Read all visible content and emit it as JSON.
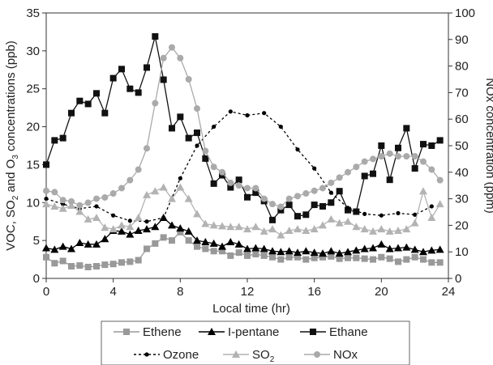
{
  "chart_data": {
    "type": "line",
    "xlabel": "Local time (hr)",
    "ylabel_left": "VOC, SO2 and O3 concentrations (ppb)",
    "ylabel_left_parts": {
      "a": "VOC, SO",
      "sub1": "2",
      "b": " and O",
      "sub2": "3",
      "c": " concentrations (ppb)"
    },
    "ylabel_right": "NOx concentration (ppm)",
    "xlim": [
      0,
      24
    ],
    "ylim_left": [
      0,
      35
    ],
    "ylim_right": [
      0,
      100
    ],
    "x_ticks": [
      "0",
      "4",
      "8",
      "12",
      "16",
      "20",
      "24"
    ],
    "y_ticks_left": [
      "0",
      "5",
      "10",
      "15",
      "20",
      "25",
      "30",
      "35"
    ],
    "y_ticks_right": [
      "0",
      "10",
      "20",
      "30",
      "40",
      "50",
      "60",
      "70",
      "80",
      "90",
      "100"
    ],
    "grid": false,
    "legend_position": "bottom",
    "series": [
      {
        "name": "Ethene",
        "axis": "left",
        "color": "#999999",
        "marker": "square",
        "line": "solid",
        "x": [
          0,
          0.5,
          1,
          1.5,
          2,
          2.5,
          3,
          3.5,
          4,
          4.5,
          5,
          5.5,
          6,
          6.5,
          7,
          7.5,
          8,
          8.5,
          9,
          9.5,
          10,
          10.5,
          11,
          11.5,
          12,
          12.5,
          13,
          13.5,
          14,
          14.5,
          15,
          15.5,
          16,
          16.5,
          17,
          17.5,
          18,
          18.5,
          19,
          19.5,
          20,
          20.5,
          21,
          21.5,
          22,
          22.5,
          23,
          23.5
        ],
        "y": [
          2.8,
          2.0,
          2.3,
          1.6,
          1.7,
          1.5,
          1.6,
          1.8,
          1.9,
          2.1,
          2.2,
          2.4,
          3.9,
          4.6,
          5.4,
          5.0,
          6.1,
          5.0,
          4.2,
          3.9,
          3.6,
          3.6,
          3.0,
          3.4,
          3.0,
          3.2,
          3.0,
          2.8,
          2.5,
          2.8,
          2.8,
          2.5,
          2.7,
          2.8,
          2.9,
          2.6,
          2.7,
          2.7,
          2.6,
          2.5,
          2.8,
          2.6,
          2.2,
          2.5,
          2.8,
          2.5,
          2.1,
          2.1
        ]
      },
      {
        "name": "I-pentane",
        "axis": "left",
        "color": "#000000",
        "marker": "triangle",
        "line": "solid",
        "x": [
          0,
          0.5,
          1,
          1.5,
          2,
          2.5,
          3,
          3.5,
          4,
          4.5,
          5,
          5.5,
          6,
          6.5,
          7,
          7.5,
          8,
          8.5,
          9,
          9.5,
          10,
          10.5,
          11,
          11.5,
          12,
          12.5,
          13,
          13.5,
          14,
          14.5,
          15,
          15.5,
          16,
          16.5,
          17,
          17.5,
          18,
          18.5,
          19,
          19.5,
          20,
          20.5,
          21,
          21.5,
          22,
          22.5,
          23,
          23.5
        ],
        "y": [
          4.0,
          3.8,
          4.2,
          3.9,
          4.7,
          4.5,
          4.5,
          5.2,
          6.3,
          6.2,
          5.8,
          6.3,
          6.5,
          6.8,
          8.0,
          7.0,
          6.6,
          6.2,
          5.0,
          4.8,
          4.6,
          4.2,
          4.8,
          4.5,
          3.9,
          4.0,
          3.9,
          3.6,
          3.5,
          3.6,
          3.4,
          3.6,
          3.4,
          3.3,
          3.6,
          3.3,
          3.5,
          3.7,
          3.9,
          4.0,
          4.5,
          3.9,
          4.0,
          4.1,
          3.8,
          3.5,
          3.7,
          3.8
        ]
      },
      {
        "name": "Ethane",
        "axis": "left",
        "color": "#111111",
        "marker": "square",
        "line": "solid",
        "x": [
          0,
          0.5,
          1,
          1.5,
          2,
          2.5,
          3,
          3.5,
          4,
          4.5,
          5,
          5.5,
          6,
          6.5,
          7,
          7.5,
          8,
          8.5,
          9,
          9.5,
          10,
          10.5,
          11,
          11.5,
          12,
          12.5,
          13,
          13.5,
          14,
          14.5,
          15,
          15.5,
          16,
          16.5,
          17,
          17.5,
          18,
          18.5,
          19,
          19.5,
          20,
          20.5,
          21,
          21.5,
          22,
          22.5,
          23,
          23.5
        ],
        "y": [
          15.0,
          18.2,
          18.5,
          21.8,
          23.4,
          23.0,
          24.4,
          21.8,
          26.4,
          27.6,
          25.0,
          24.5,
          27.8,
          31.9,
          26.2,
          19.8,
          21.3,
          18.5,
          19.2,
          15.8,
          12.5,
          13.6,
          12.0,
          13.0,
          10.7,
          11.3,
          10.2,
          7.7,
          9.0,
          9.7,
          8.2,
          8.4,
          9.7,
          9.5,
          10.0,
          11.5,
          9.0,
          8.8,
          13.5,
          13.8,
          17.5,
          13.0,
          17.2,
          19.8,
          14.5,
          17.7,
          17.5,
          18.2
        ]
      },
      {
        "name": "Ozone",
        "axis": "left",
        "color": "#000000",
        "marker": "circle-small",
        "line": "dashed",
        "x": [
          0,
          1,
          2,
          3,
          4,
          5,
          6,
          7,
          8,
          9,
          10,
          11,
          12,
          13,
          14,
          15,
          16,
          17,
          18,
          19,
          20,
          21,
          22,
          23
        ],
        "y": [
          10.5,
          9.8,
          9.2,
          9.5,
          8.3,
          7.6,
          7.5,
          8.0,
          13.2,
          17.5,
          20.0,
          22.0,
          21.5,
          21.8,
          20.0,
          17.0,
          14.5,
          11.3,
          9.3,
          8.5,
          8.3,
          8.6,
          8.4,
          9.5
        ]
      },
      {
        "name": "SO2",
        "label_base": "SO",
        "label_sub": "2",
        "axis": "left",
        "color": "#b3b3b3",
        "marker": "triangle",
        "line": "solid",
        "x": [
          0,
          0.5,
          1,
          1.5,
          2,
          2.5,
          3,
          3.5,
          4,
          4.5,
          5,
          5.5,
          6,
          6.5,
          7,
          7.5,
          8,
          8.5,
          9,
          9.5,
          10,
          10.5,
          11,
          11.5,
          12,
          12.5,
          13,
          13.5,
          14,
          14.5,
          15,
          15.5,
          16,
          16.5,
          17,
          17.5,
          18,
          18.5,
          19,
          19.5,
          20,
          20.5,
          21,
          21.5,
          22,
          22.5,
          23,
          23.5
        ],
        "y": [
          9.8,
          9.5,
          9.2,
          9.6,
          8.8,
          7.8,
          8.0,
          6.7,
          6.5,
          7.0,
          6.8,
          8.0,
          11.0,
          11.5,
          12.0,
          10.5,
          12.0,
          10.5,
          8.5,
          7.2,
          7.0,
          6.9,
          6.8,
          6.8,
          6.5,
          6.8,
          6.2,
          6.5,
          5.7,
          6.3,
          6.5,
          6.3,
          6.5,
          7.0,
          7.8,
          7.3,
          7.5,
          6.8,
          6.5,
          6.2,
          6.5,
          6.2,
          6.3,
          6.5,
          7.3,
          11.5,
          8.0,
          9.8
        ]
      },
      {
        "name": "NOx",
        "axis": "right",
        "color": "#aaaaaa",
        "marker": "circle",
        "line": "solid",
        "x": [
          0,
          0.5,
          1,
          1.5,
          2,
          2.5,
          3,
          3.5,
          4,
          4.5,
          5,
          5.5,
          6,
          6.5,
          7,
          7.5,
          8,
          8.5,
          9,
          9.5,
          10,
          10.5,
          11,
          11.5,
          12,
          12.5,
          13,
          13.5,
          14,
          14.5,
          15,
          15.5,
          16,
          16.5,
          17,
          17.5,
          18,
          18.5,
          19,
          19.5,
          20,
          20.5,
          21,
          21.5,
          22,
          22.5,
          23,
          23.5
        ],
        "y": [
          33,
          32.5,
          29.5,
          29,
          27.5,
          28.5,
          30,
          30.5,
          32,
          34,
          37,
          41,
          49,
          66,
          83,
          87,
          83,
          75,
          64,
          48,
          42,
          40,
          36,
          35,
          34,
          34,
          30,
          28,
          27,
          30,
          31,
          32,
          33,
          34,
          36,
          38,
          40,
          42,
          44,
          45,
          46,
          47,
          46,
          46,
          46,
          44,
          41,
          37
        ]
      }
    ]
  }
}
